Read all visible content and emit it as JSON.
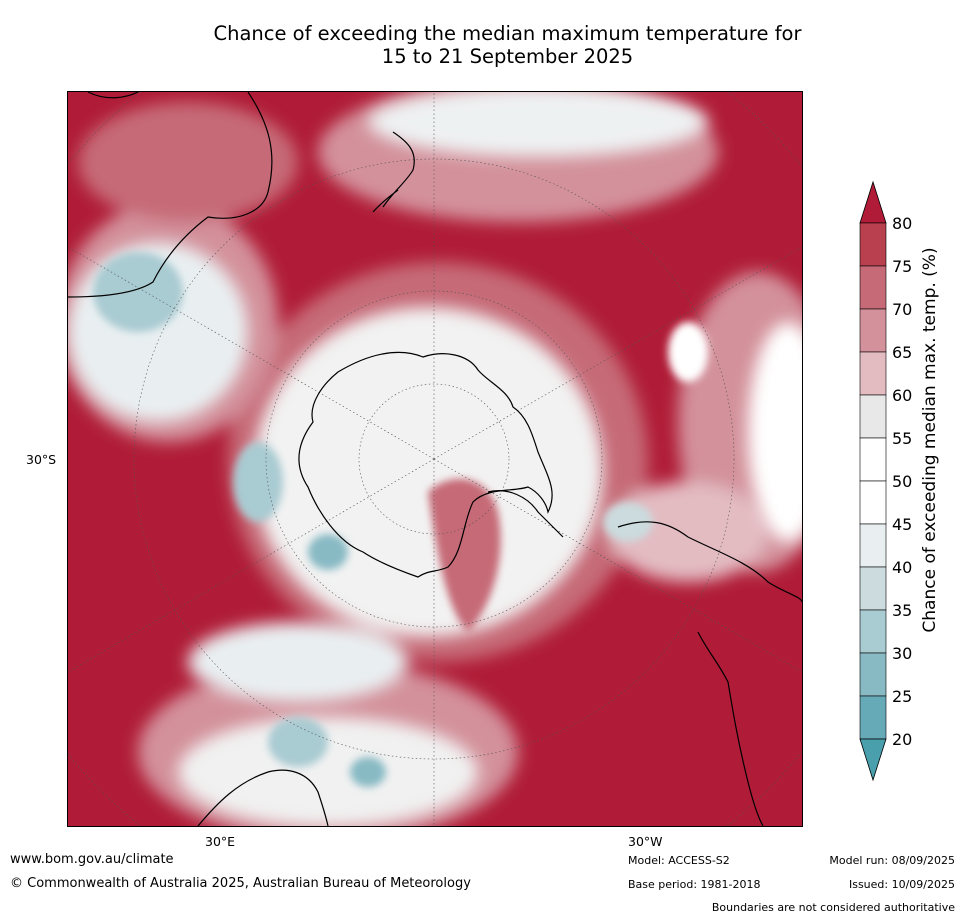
{
  "title": {
    "line1": "Chance of exceeding the median maximum temperature for",
    "line2": "15 to 21 September 2025"
  },
  "axis_labels": {
    "lat": "30°S",
    "lon_left": "30°E",
    "lon_right": "30°W"
  },
  "colorbar": {
    "label": "Chance of exceeding median max. temp. (%)",
    "ticks": [
      "20",
      "25",
      "30",
      "35",
      "40",
      "45",
      "50",
      "55",
      "60",
      "65",
      "70",
      "75",
      "80"
    ],
    "colors": {
      "below_20": "#4a9fad",
      "20_25": "#67aab7",
      "25_30": "#88bac4",
      "30_35": "#a9cbd2",
      "35_40": "#cbdbde",
      "40_45": "#e9eff1",
      "45_50": "#ffffff",
      "50_55": "#ffffff",
      "55_60": "#e8e8e8",
      "60_65": "#e3bcc2",
      "65_70": "#d3919b",
      "70_75": "#c66a77",
      "75_80": "#b8404f",
      "above_80": "#b01c37"
    }
  },
  "footer": {
    "website": "www.bom.gov.au/climate",
    "copyright": "© Commonwealth of Australia 2025, Australian Bureau of Meteorology",
    "model": "Model: ACCESS-S2",
    "base_period": "Base period: 1981-2018",
    "model_run": "Model run: 08/09/2025",
    "issued": "Issued: 10/09/2025",
    "disclaimer": "Boundaries are not considered authoritative"
  }
}
